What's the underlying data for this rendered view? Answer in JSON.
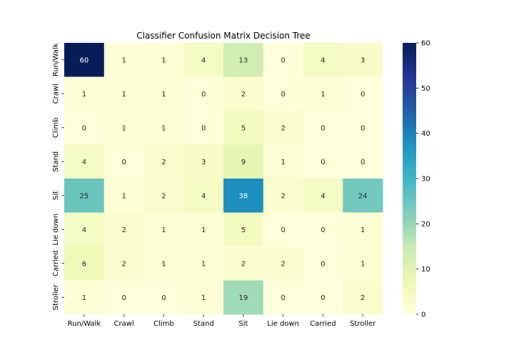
{
  "chart_data": {
    "type": "heatmap",
    "title": "Classifier Confusion Matrix Decision Tree",
    "xlabel": "",
    "ylabel": "",
    "x_categories": [
      "Run/Walk",
      "Crawl",
      "Climb",
      "Stand",
      "Sit",
      "Lie down",
      "Carried",
      "Stroller"
    ],
    "y_categories": [
      "Run/Walk",
      "Crawl",
      "Climb",
      "Stand",
      "Sit",
      "Lie down",
      "Carried",
      "Stroller"
    ],
    "values": [
      [
        60,
        1,
        1,
        4,
        13,
        0,
        4,
        3
      ],
      [
        1,
        1,
        1,
        0,
        2,
        0,
        1,
        0
      ],
      [
        0,
        1,
        1,
        0,
        5,
        2,
        0,
        0
      ],
      [
        4,
        0,
        2,
        3,
        9,
        1,
        0,
        0
      ],
      [
        25,
        1,
        2,
        4,
        38,
        2,
        4,
        24
      ],
      [
        4,
        2,
        1,
        1,
        5,
        0,
        0,
        1
      ],
      [
        6,
        2,
        1,
        1,
        2,
        2,
        0,
        1
      ],
      [
        1,
        0,
        0,
        1,
        19,
        0,
        0,
        2
      ]
    ],
    "colormap": "YlGnBu",
    "vmin": 0,
    "vmax": 60,
    "colorbar_ticks": [
      0,
      10,
      20,
      30,
      40,
      50,
      60
    ],
    "annotated": true,
    "grid": false,
    "legend": "colorbar-right"
  }
}
